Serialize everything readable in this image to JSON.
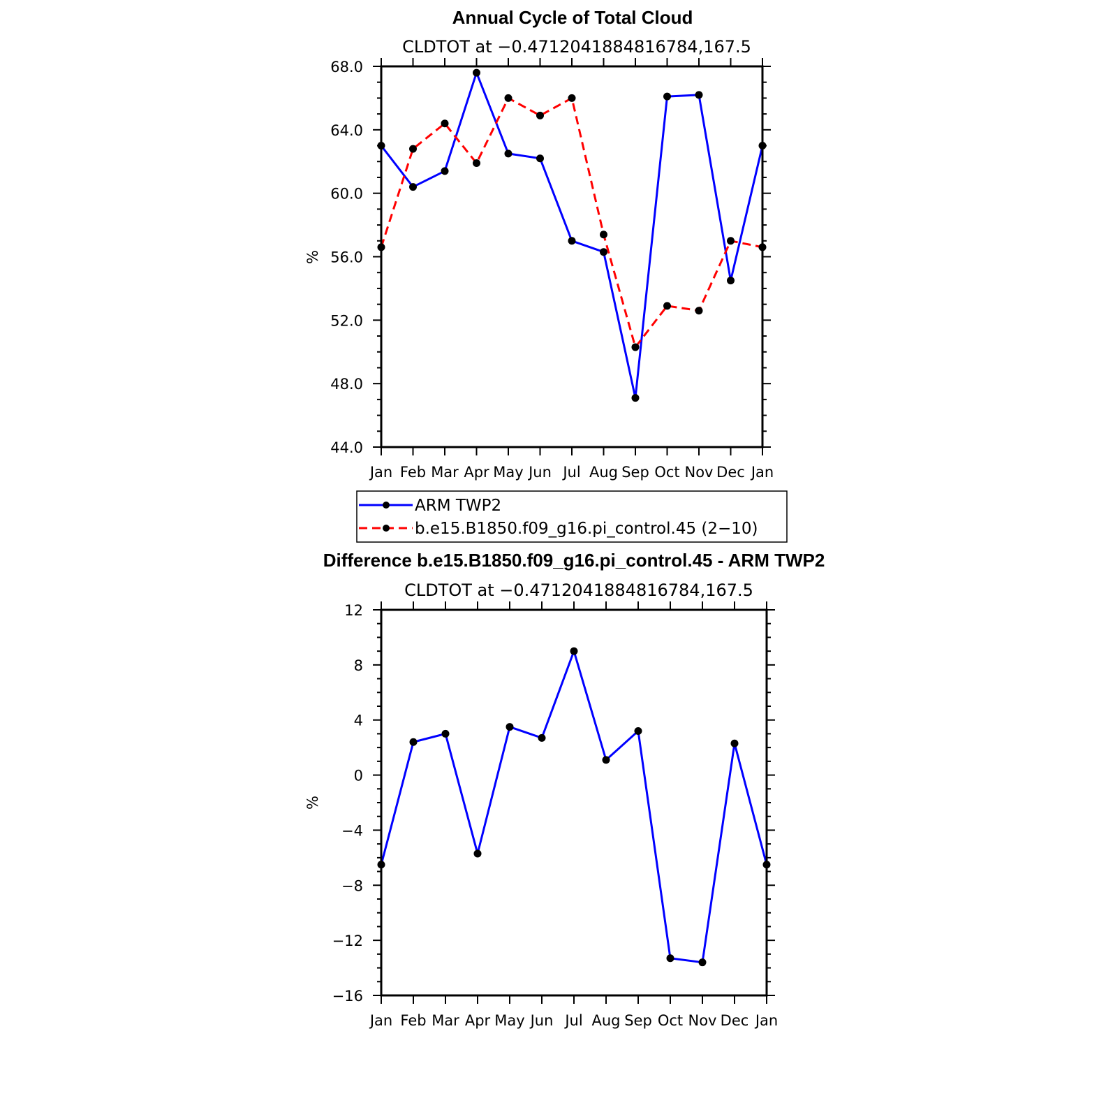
{
  "chart_data": [
    {
      "type": "line",
      "title": "Annual Cycle of Total Cloud",
      "subtitle": "CLDTOT at −0.4712041884816784,167.5",
      "ylabel": "%",
      "ylim": [
        44,
        68
      ],
      "yticks": [
        "44.0",
        "48.0",
        "52.0",
        "56.0",
        "60.0",
        "64.0",
        "68.0"
      ],
      "categories": [
        "Jan",
        "Feb",
        "Mar",
        "Apr",
        "May",
        "Jun",
        "Jul",
        "Aug",
        "Sep",
        "Oct",
        "Nov",
        "Dec",
        "Jan"
      ],
      "series": [
        {
          "name": "ARM TWP2",
          "color": "#0000ff",
          "dash": "solid",
          "values": [
            63.0,
            60.4,
            61.4,
            67.6,
            62.5,
            62.2,
            57.0,
            56.3,
            47.1,
            66.1,
            66.2,
            54.5,
            63.0
          ]
        },
        {
          "name": "b.e15.B1850.f09_g16.pi_control.45 (2−10)",
          "color": "#ff0000",
          "dash": "dashed",
          "values": [
            56.6,
            62.8,
            64.4,
            61.9,
            66.0,
            64.9,
            66.0,
            57.4,
            50.3,
            52.9,
            52.6,
            57.0,
            56.6
          ]
        }
      ],
      "legend": "below"
    },
    {
      "type": "line",
      "title": "Difference b.e15.B1850.f09_g16.pi_control.45 - ARM TWP2",
      "subtitle": "CLDTOT at −0.4712041884816784,167.5",
      "ylabel": "%",
      "ylim": [
        -16,
        12
      ],
      "yticks": [
        "−16",
        "−12",
        "−8",
        "−4",
        "0",
        "4",
        "8",
        "12"
      ],
      "categories": [
        "Jan",
        "Feb",
        "Mar",
        "Apr",
        "May",
        "Jun",
        "Jul",
        "Aug",
        "Sep",
        "Oct",
        "Nov",
        "Dec",
        "Jan"
      ],
      "series": [
        {
          "color": "#0000ff",
          "dash": "solid",
          "values": [
            -6.5,
            2.4,
            3.0,
            -5.7,
            3.5,
            2.7,
            9.0,
            1.1,
            3.2,
            -13.3,
            -13.6,
            2.3,
            -6.5
          ]
        }
      ]
    }
  ]
}
